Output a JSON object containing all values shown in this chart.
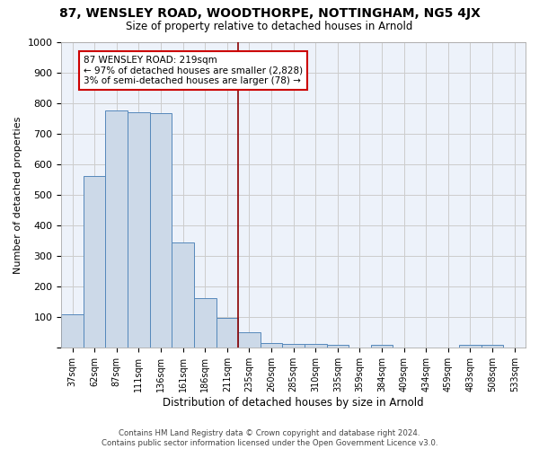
{
  "title": "87, WENSLEY ROAD, WOODTHORPE, NOTTINGHAM, NG5 4JX",
  "subtitle": "Size of property relative to detached houses in Arnold",
  "xlabel": "Distribution of detached houses by size in Arnold",
  "ylabel": "Number of detached properties",
  "bin_labels": [
    "37sqm",
    "62sqm",
    "87sqm",
    "111sqm",
    "136sqm",
    "161sqm",
    "186sqm",
    "211sqm",
    "235sqm",
    "260sqm",
    "285sqm",
    "310sqm",
    "335sqm",
    "359sqm",
    "384sqm",
    "409sqm",
    "434sqm",
    "459sqm",
    "483sqm",
    "508sqm",
    "533sqm"
  ],
  "bar_heights": [
    110,
    560,
    775,
    770,
    768,
    345,
    163,
    97,
    50,
    15,
    12,
    12,
    10,
    0,
    10,
    0,
    0,
    0,
    10,
    10,
    0
  ],
  "bar_color": "#ccd9e8",
  "bar_edge_color": "#5588bb",
  "grid_color": "#cccccc",
  "bg_color": "#edf2fa",
  "red_line_x": 7.5,
  "red_line_color": "#8b0000",
  "annotation_text": "87 WENSLEY ROAD: 219sqm\n← 97% of detached houses are smaller (2,828)\n3% of semi-detached houses are larger (78) →",
  "annotation_box_color": "#ffffff",
  "annotation_box_edge": "#cc0000",
  "footer_text": "Contains HM Land Registry data © Crown copyright and database right 2024.\nContains public sector information licensed under the Open Government Licence v3.0.",
  "ylim": [
    0,
    1000
  ],
  "yticks": [
    0,
    100,
    200,
    300,
    400,
    500,
    600,
    700,
    800,
    900,
    1000
  ]
}
